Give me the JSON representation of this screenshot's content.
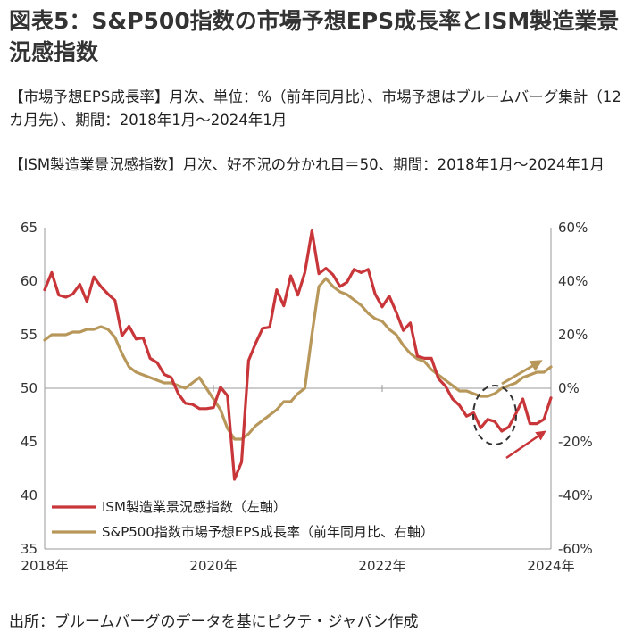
{
  "header": {
    "title": "図表5：S&P500指数の市場予想EPS成長率とISM製造業景況感指数",
    "note_eps": "【市場予想EPS成長率】月次、単位：%（前年同月比）、市場予想はブルームバーグ集計（12カ月先）、期間：2018年1月～2024年1月",
    "note_ism": "【ISM製造業景況感指数】月次、好不況の分かれ目＝50、期間：2018年1月～2024年1月"
  },
  "source": "出所：ブルームバーグのデータを基にピクテ・ジャパン作成",
  "colors": {
    "ism": "#c8363a",
    "eps": "#b8975a",
    "axis": "#999999",
    "arrow_red": "#c8363a",
    "arrow_gold": "#b8975a"
  },
  "chart_data": {
    "type": "line",
    "x_start": "2018-01",
    "x_end": "2024-01",
    "xtick_labels": [
      "2018年",
      "2020年",
      "2022年",
      "2024年"
    ],
    "ylim_left": [
      35,
      65
    ],
    "yticks_left": [
      "35",
      "40",
      "45",
      "50",
      "55",
      "60",
      "65"
    ],
    "ylim_right": [
      -60,
      60
    ],
    "yticks_right": [
      "-60%",
      "-40%",
      "-20%",
      "0%",
      "20%",
      "40%",
      "60%"
    ],
    "series": [
      {
        "name": "ISM製造業景況感指数（左軸）",
        "axis": "left",
        "color": "#c8363a",
        "values": [
          59.2,
          60.8,
          58.7,
          58.5,
          58.8,
          59.7,
          58.1,
          60.4,
          59.5,
          58.8,
          58.2,
          54.9,
          55.8,
          54.6,
          54.7,
          52.8,
          52.4,
          51.3,
          51.0,
          49.5,
          48.6,
          48.5,
          48.1,
          48.1,
          48.2,
          50.1,
          49.3,
          41.5,
          43.1,
          52.6,
          54.2,
          55.6,
          55.7,
          59.2,
          57.7,
          60.5,
          58.7,
          60.8,
          64.7,
          60.7,
          61.2,
          60.6,
          59.5,
          59.9,
          61.1,
          60.8,
          61.1,
          58.8,
          57.6,
          58.6,
          57.1,
          55.4,
          56.1,
          53.0,
          52.8,
          52.8,
          50.9,
          50.2,
          49.0,
          48.4,
          47.4,
          47.7,
          46.3,
          47.1,
          46.9,
          46.0,
          46.4,
          47.6,
          49.0,
          46.7,
          46.7,
          47.1,
          49.1
        ]
      },
      {
        "name": "S&P500指数市場予想EPS成長率（前年同月比、右軸）",
        "axis": "right",
        "color": "#b8975a",
        "values": [
          18,
          20,
          20,
          20,
          21,
          21,
          22,
          22,
          23,
          22,
          19,
          13,
          8,
          6,
          5,
          4,
          3,
          2,
          2,
          1,
          0,
          2,
          4,
          0,
          -4,
          -8,
          -15,
          -19,
          -19,
          -17,
          -14,
          -12,
          -10,
          -8,
          -5,
          -5,
          -2,
          0,
          20,
          38,
          41,
          38,
          36,
          35,
          33,
          31,
          28,
          26,
          25,
          22,
          20,
          16,
          13,
          11,
          10,
          7,
          5,
          3,
          1,
          -1,
          -1,
          -2,
          -3,
          -3,
          -2,
          0,
          1,
          2,
          4,
          5,
          6,
          6,
          8
        ]
      }
    ],
    "legend_position": "bottom-left",
    "annotations": [
      "dashed circle around 2023 trough",
      "gold arrow pointing up-right",
      "red arrow pointing up-right"
    ]
  }
}
